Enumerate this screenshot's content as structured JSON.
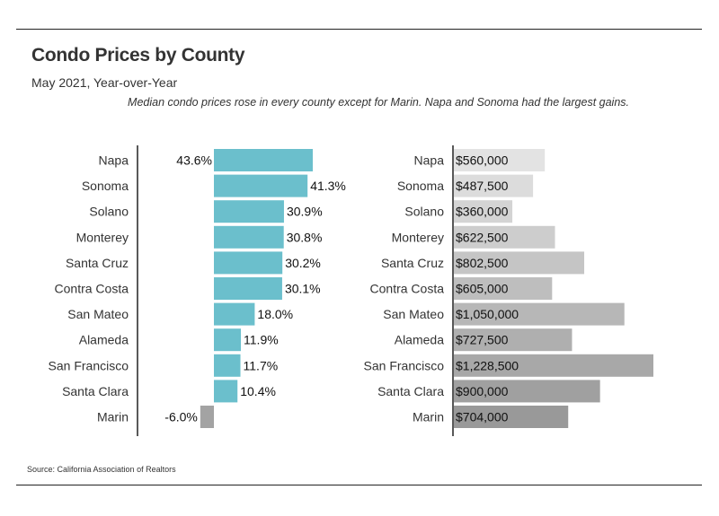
{
  "header": {
    "title": "Condo Prices by County",
    "subtitle": "May 2021, Year-over-Year",
    "caption": "Median condo prices rose in every county except for Marin. Napa and Sonoma had the largest gains."
  },
  "footer": {
    "source": "Source:  California Association of Realtors"
  },
  "colors": {
    "pct_positive": "#6bbfcc",
    "pct_negative": "#a3a3a3",
    "axis": "#222222",
    "price_light": "#e3e3e3",
    "price_dark": "#999999"
  },
  "chart_data": [
    {
      "type": "bar",
      "orientation": "horizontal",
      "categories": [
        "Napa",
        "Sonoma",
        "Solano",
        "Monterey",
        "Santa Cruz",
        "Contra Costa",
        "San Mateo",
        "Alameda",
        "San Francisco",
        "Santa Clara",
        "Marin"
      ],
      "values": [
        43.6,
        41.3,
        30.9,
        30.8,
        30.2,
        30.1,
        18.0,
        11.9,
        11.7,
        10.4,
        -6.0
      ],
      "labels": [
        "43.6%",
        "41.3%",
        "30.9%",
        "30.8%",
        "30.2%",
        "30.1%",
        "18.0%",
        "11.9%",
        "11.7%",
        "10.4%",
        "-6.0%"
      ],
      "unit": "%",
      "xlim": [
        -35,
        60
      ]
    },
    {
      "type": "bar",
      "orientation": "horizontal",
      "categories": [
        "Napa",
        "Sonoma",
        "Solano",
        "Monterey",
        "Santa Cruz",
        "Contra Costa",
        "San Mateo",
        "Alameda",
        "San Francisco",
        "Santa Clara",
        "Marin"
      ],
      "values": [
        560000,
        487500,
        360000,
        622500,
        802500,
        605000,
        1050000,
        727500,
        1228500,
        900000,
        704000
      ],
      "labels": [
        "$560,000",
        "$487,500",
        "$360,000",
        "$622,500",
        "$802,500",
        "$605,000",
        "$1,050,000",
        "$727,500",
        "$1,228,500",
        "$900,000",
        "$704,000"
      ],
      "unit": "$",
      "xlim": [
        0,
        1228500
      ]
    }
  ]
}
